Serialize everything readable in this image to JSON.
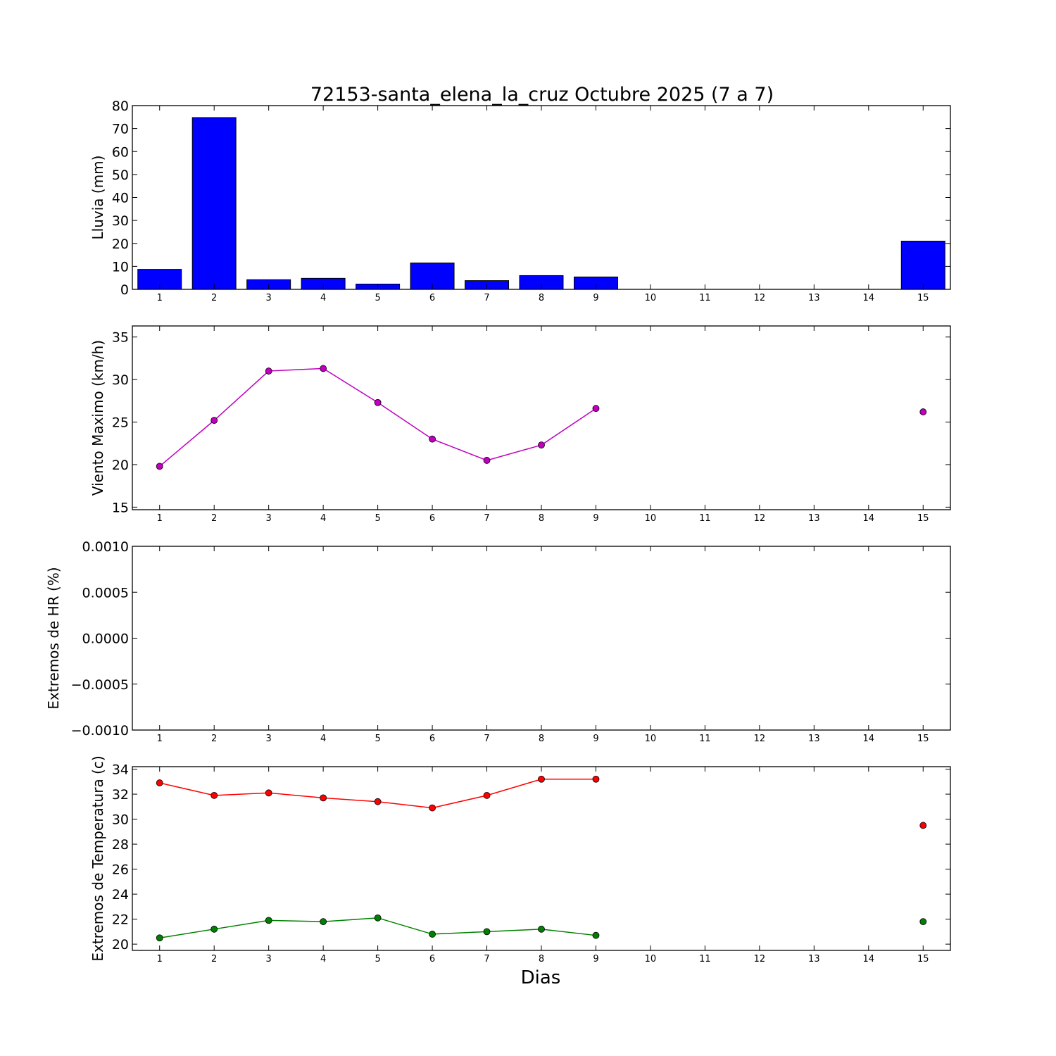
{
  "title": "72153-santa_elena_la_cruz Octubre 2025  (7 a 7)",
  "xlabel": "Dias",
  "x_ticks": [
    1,
    2,
    3,
    4,
    5,
    6,
    7,
    8,
    9,
    10,
    11,
    12,
    13,
    14,
    15
  ],
  "chart_data": [
    {
      "id": "lluvia",
      "type": "bar",
      "ylabel": "Lluvia (mm)",
      "ylim": [
        0,
        80
      ],
      "y_ticks": [
        "0",
        "10",
        "20",
        "30",
        "40",
        "50",
        "60",
        "70",
        "80"
      ],
      "x": [
        1,
        2,
        3,
        4,
        5,
        6,
        7,
        8,
        9,
        15
      ],
      "values": [
        8.7,
        74.8,
        4.2,
        4.8,
        2.3,
        11.5,
        3.8,
        6.0,
        5.4,
        21.0
      ],
      "color": "#0000ff"
    },
    {
      "id": "viento",
      "type": "line",
      "ylabel": "Viento Maximo (km/h)",
      "ylim": [
        14.7,
        36.3
      ],
      "y_ticks": [
        "15",
        "20",
        "25",
        "30",
        "35"
      ],
      "series": [
        {
          "color": "#bf00bf",
          "segments": [
            [
              [
                1,
                19.8
              ],
              [
                2,
                25.2
              ],
              [
                3,
                31.0
              ],
              [
                4,
                31.3
              ],
              [
                5,
                27.3
              ],
              [
                6,
                23.0
              ],
              [
                7,
                20.5
              ],
              [
                8,
                22.3
              ],
              [
                9,
                26.6
              ]
            ],
            [
              [
                15,
                26.2
              ]
            ]
          ]
        }
      ]
    },
    {
      "id": "hr",
      "type": "line",
      "ylabel": "Extremos de HR (%)",
      "ylim": [
        -0.001,
        0.001
      ],
      "y_ticks": [
        "−0.0010",
        "−0.0005",
        "0.0000",
        "0.0005",
        "0.0010"
      ],
      "series": []
    },
    {
      "id": "temperatura",
      "type": "line",
      "ylabel": "Extremos de Temperatura (c)",
      "ylim": [
        19.5,
        34.2
      ],
      "y_ticks": [
        "20",
        "22",
        "24",
        "26",
        "28",
        "30",
        "32",
        "34"
      ],
      "series": [
        {
          "color": "#ff0000",
          "segments": [
            [
              [
                1,
                32.9
              ],
              [
                2,
                31.9
              ],
              [
                3,
                32.1
              ],
              [
                4,
                31.7
              ],
              [
                5,
                31.4
              ],
              [
                6,
                30.9
              ],
              [
                7,
                31.9
              ],
              [
                8,
                33.2
              ],
              [
                9,
                33.2
              ]
            ],
            [
              [
                15,
                29.5
              ]
            ]
          ]
        },
        {
          "color": "#008000",
          "segments": [
            [
              [
                1,
                20.5
              ],
              [
                2,
                21.2
              ],
              [
                3,
                21.9
              ],
              [
                4,
                21.8
              ],
              [
                5,
                22.1
              ],
              [
                6,
                20.8
              ],
              [
                7,
                21.0
              ],
              [
                8,
                21.2
              ],
              [
                9,
                20.7
              ]
            ],
            [
              [
                15,
                21.8
              ]
            ]
          ]
        }
      ]
    }
  ]
}
